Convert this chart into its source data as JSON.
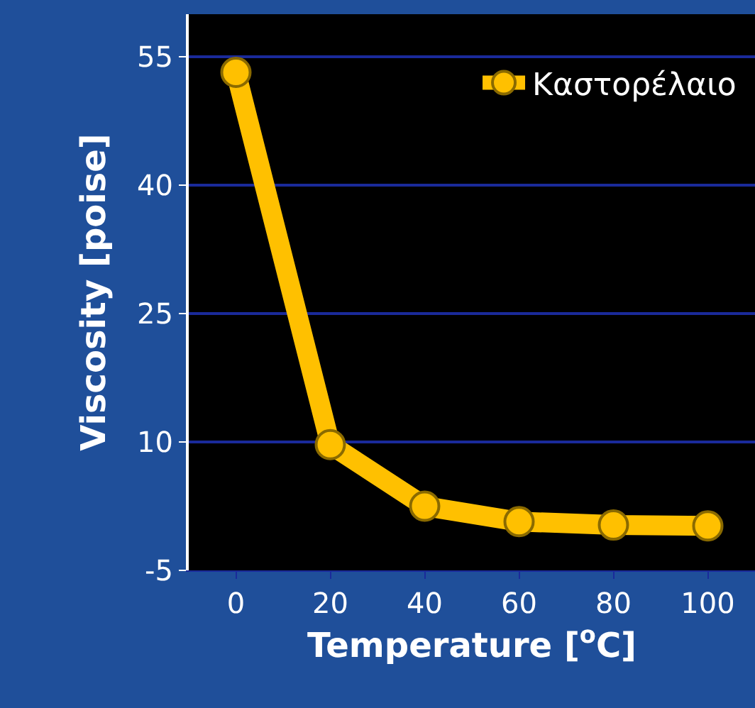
{
  "chart_data": {
    "type": "line",
    "xlabel": "Temperature [$^{o}$C]",
    "ylabel": "Viscosity [poise]",
    "categories": [
      "0",
      "20",
      "40",
      "60",
      "80",
      "100"
    ],
    "series": [
      {
        "name": "Καστορέλαιο",
        "color": "#ffc000",
        "values": [
          53.2,
          9.7,
          2.5,
          0.7,
          0.3,
          0.2
        ]
      }
    ],
    "ylim": [
      -5,
      60
    ],
    "yticks": [
      -5,
      10,
      25,
      40,
      55
    ],
    "grid": "y",
    "legend": "top right",
    "marker": "circle",
    "line_style": "solid"
  }
}
